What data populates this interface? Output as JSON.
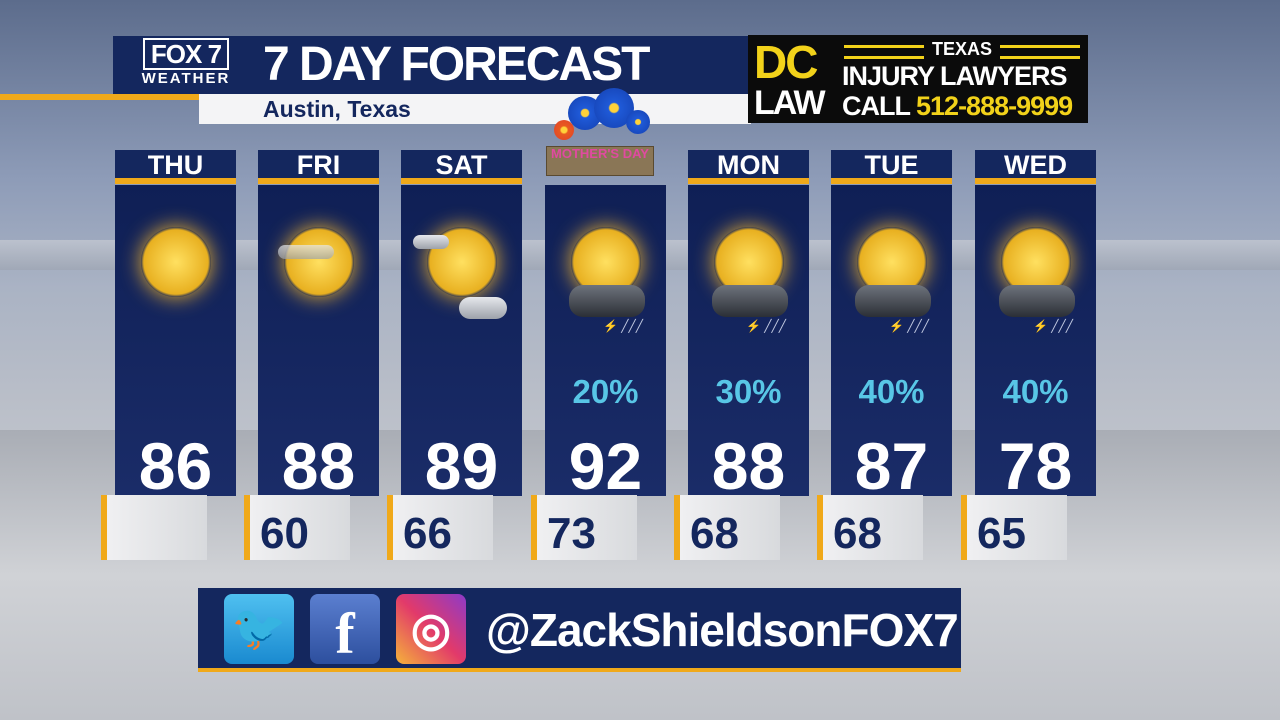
{
  "header": {
    "logo_top": "FOX 7",
    "logo_bottom": "WEATHER",
    "title": "7 DAY FORECAST",
    "location": "Austin, Texas"
  },
  "ad": {
    "dc": "DC",
    "law": "LAW",
    "texas": "TEXAS",
    "injury": "INJURY LAWYERS",
    "call": "CALL",
    "phone": "512-888-9999"
  },
  "holiday": {
    "label": "MOTHER'S DAY"
  },
  "days": [
    {
      "day": "THU",
      "icon": "sunny",
      "pop": "",
      "high": "86",
      "low": ""
    },
    {
      "day": "FRI",
      "icon": "sunny-hazy",
      "pop": "",
      "high": "88",
      "low": "60"
    },
    {
      "day": "SAT",
      "icon": "mostly-sunny",
      "pop": "",
      "high": "89",
      "low": "66"
    },
    {
      "day": "",
      "icon": "sun-thunderstorm",
      "pop": "20%",
      "high": "92",
      "low": "73"
    },
    {
      "day": "MON",
      "icon": "sun-thunderstorm",
      "pop": "30%",
      "high": "88",
      "low": "68"
    },
    {
      "day": "TUE",
      "icon": "sun-thunderstorm",
      "pop": "40%",
      "high": "87",
      "low": "68"
    },
    {
      "day": "WED",
      "icon": "sun-thunderstorm",
      "pop": "40%",
      "high": "78",
      "low": "65"
    }
  ],
  "social": {
    "twitter": "twitter-icon",
    "facebook": "f",
    "instagram": "instagram-icon",
    "handle": "@ZackShieldsonFOX7"
  },
  "colors": {
    "navy": "#14275e",
    "accent": "#f0a91a",
    "pop": "#58c6e6",
    "ad_yellow": "#f2d21a"
  }
}
